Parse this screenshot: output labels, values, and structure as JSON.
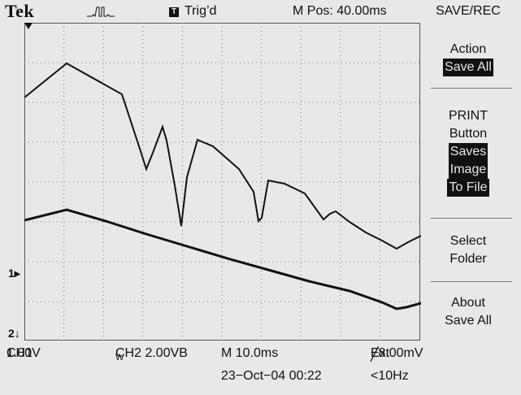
{
  "header": {
    "brand": "Tek",
    "acq_icon": "acquire-waveform-icon",
    "trig_box_label": "T",
    "trig_status": "Trig’d",
    "m_pos": "M Pos: 40.00ms"
  },
  "menu": {
    "title": "SAVE/REC",
    "action_label": "Action",
    "action_value": "Save All",
    "print_label_1": "PRINT",
    "print_label_2": "Button",
    "print_value_1": "Saves",
    "print_value_2": "Image",
    "print_value_3": "To File",
    "select_1": "Select",
    "select_2": "Folder",
    "about_1": "About",
    "about_2": "Save All"
  },
  "markers": {
    "ch1": "1",
    "ch2": "2"
  },
  "status": {
    "ch1": "CH1",
    "ch1_scale": "1.00V",
    "ch2": "CH2  2.00VB",
    "ch2_suffix": "W",
    "time": "M 10.0ms",
    "trigger": "Ext",
    "trig_level": "−8.00mV",
    "date": "23−Oct−04 00:22",
    "freq": "<10Hz"
  },
  "colors": {
    "background": "#e8e8e8",
    "trace": "#111111",
    "grid": "#555555"
  }
}
